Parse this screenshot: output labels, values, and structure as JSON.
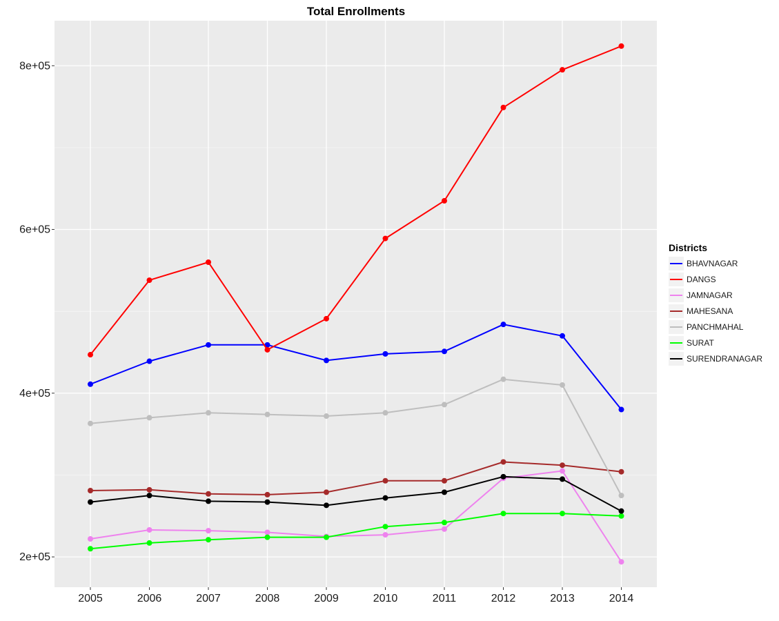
{
  "chart_data": {
    "type": "line",
    "title": "Total Enrollments",
    "xlabel": "",
    "ylabel": "",
    "x": [
      2005,
      2006,
      2007,
      2008,
      2009,
      2010,
      2011,
      2012,
      2013,
      2014
    ],
    "y_ticks": [
      200000,
      400000,
      600000,
      800000
    ],
    "y_tick_labels": [
      "2e+05",
      "4e+05",
      "6e+05",
      "8e+05"
    ],
    "ylim": [
      163000,
      855000
    ],
    "grid": true,
    "legend": {
      "title": "Districts",
      "position": "right"
    },
    "series": [
      {
        "name": "BHAVNAGAR",
        "color": "#0000ff",
        "values": [
          411000,
          439000,
          459000,
          459000,
          440000,
          448000,
          451000,
          484000,
          470000,
          380000
        ]
      },
      {
        "name": "DANGS",
        "color": "#ff0000",
        "values": [
          447000,
          538000,
          560000,
          453000,
          491000,
          589000,
          635000,
          749000,
          795000,
          824000
        ]
      },
      {
        "name": "JAMNAGAR",
        "color": "#ee82ee",
        "values": [
          222000,
          233000,
          232000,
          230000,
          225000,
          227000,
          234000,
          296000,
          305000,
          194000
        ]
      },
      {
        "name": "MAHESANA",
        "color": "#a52a2a",
        "values": [
          281000,
          282000,
          277000,
          276000,
          279000,
          293000,
          293000,
          316000,
          312000,
          304000
        ]
      },
      {
        "name": "PANCHMAHAL",
        "color": "#bebebe",
        "values": [
          363000,
          370000,
          376000,
          374000,
          372000,
          376000,
          386000,
          417000,
          410000,
          275000
        ]
      },
      {
        "name": "SURAT",
        "color": "#00ff00",
        "values": [
          210000,
          217000,
          221000,
          224000,
          224000,
          237000,
          242000,
          253000,
          253000,
          250000
        ]
      },
      {
        "name": "SURENDRANAGAR",
        "color": "#000000",
        "values": [
          267000,
          275000,
          268000,
          267000,
          263000,
          272000,
          279000,
          298000,
          295000,
          256000
        ]
      }
    ]
  }
}
